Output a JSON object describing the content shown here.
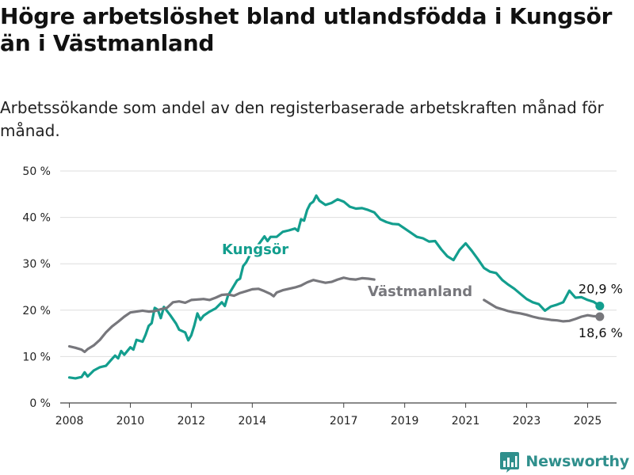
{
  "header": {
    "title": "Högre arbetslöshet bland utlandsfödda i Kungsör än i Västmanland",
    "subtitle": "Arbetssökande som andel av den registerbaserade arbetskraften månad för månad."
  },
  "brand": {
    "name": "Newsworthy",
    "color": "#2f8f8c"
  },
  "chart_data": {
    "type": "line",
    "title": "Högre arbetslöshet bland utlandsfödda i Kungsör än i Västmanland",
    "subtitle": "Arbetssökande som andel av den registerbaserade arbetskraften månad för månad.",
    "xlabel": "",
    "ylabel": "",
    "xlim": [
      2007.7,
      2025.95
    ],
    "ylim": [
      0,
      50
    ],
    "x_ticks": [
      2008,
      2010,
      2012,
      2014,
      2017,
      2019,
      2021,
      2023,
      2025
    ],
    "x_tick_labels": [
      "2008",
      "2010",
      "2012",
      "2014",
      "2017",
      "2019",
      "2021",
      "2023",
      "2025"
    ],
    "y_ticks": [
      0,
      10,
      20,
      30,
      40,
      50
    ],
    "y_tick_labels": [
      "0 %",
      "10 %",
      "20 %",
      "30 %",
      "40 %",
      "50 %"
    ],
    "grid": true,
    "legend": "inline labels",
    "series": [
      {
        "name": "Kungsör",
        "color": "#139e8e",
        "end_label": "20,9 %",
        "points": [
          [
            2008.0,
            5.5
          ],
          [
            2008.2,
            5.3
          ],
          [
            2008.4,
            5.6
          ],
          [
            2008.5,
            6.6
          ],
          [
            2008.6,
            5.7
          ],
          [
            2008.8,
            7.0
          ],
          [
            2009.0,
            7.7
          ],
          [
            2009.2,
            8.0
          ],
          [
            2009.4,
            9.5
          ],
          [
            2009.5,
            10.2
          ],
          [
            2009.6,
            9.6
          ],
          [
            2009.7,
            11.2
          ],
          [
            2009.8,
            10.4
          ],
          [
            2010.0,
            12.0
          ],
          [
            2010.1,
            11.5
          ],
          [
            2010.2,
            13.6
          ],
          [
            2010.4,
            13.2
          ],
          [
            2010.5,
            14.7
          ],
          [
            2010.6,
            16.6
          ],
          [
            2010.7,
            17.2
          ],
          [
            2010.8,
            20.5
          ],
          [
            2010.9,
            20.1
          ],
          [
            2011.0,
            18.3
          ],
          [
            2011.1,
            20.7
          ],
          [
            2011.3,
            19.0
          ],
          [
            2011.5,
            17.1
          ],
          [
            2011.6,
            15.8
          ],
          [
            2011.8,
            15.2
          ],
          [
            2011.9,
            13.5
          ],
          [
            2012.0,
            14.6
          ],
          [
            2012.1,
            16.7
          ],
          [
            2012.2,
            19.3
          ],
          [
            2012.3,
            17.9
          ],
          [
            2012.4,
            18.8
          ],
          [
            2012.6,
            19.7
          ],
          [
            2012.8,
            20.4
          ],
          [
            2013.0,
            21.7
          ],
          [
            2013.1,
            20.9
          ],
          [
            2013.2,
            23.1
          ],
          [
            2013.4,
            25.3
          ],
          [
            2013.5,
            26.4
          ],
          [
            2013.6,
            26.8
          ],
          [
            2013.7,
            29.5
          ],
          [
            2013.8,
            30.3
          ],
          [
            2013.9,
            31.6
          ],
          [
            2014.0,
            33.0
          ],
          [
            2014.1,
            33.5
          ],
          [
            2014.2,
            34.1
          ],
          [
            2014.4,
            35.9
          ],
          [
            2014.5,
            34.9
          ],
          [
            2014.6,
            35.8
          ],
          [
            2014.8,
            35.8
          ],
          [
            2015.0,
            36.9
          ],
          [
            2015.2,
            37.2
          ],
          [
            2015.4,
            37.6
          ],
          [
            2015.5,
            37.1
          ],
          [
            2015.6,
            39.6
          ],
          [
            2015.7,
            39.3
          ],
          [
            2015.8,
            41.6
          ],
          [
            2015.9,
            42.9
          ],
          [
            2016.0,
            43.4
          ],
          [
            2016.1,
            44.7
          ],
          [
            2016.2,
            43.6
          ],
          [
            2016.4,
            42.7
          ],
          [
            2016.6,
            43.1
          ],
          [
            2016.8,
            43.9
          ],
          [
            2017.0,
            43.4
          ],
          [
            2017.2,
            42.3
          ],
          [
            2017.4,
            41.9
          ],
          [
            2017.6,
            42.0
          ],
          [
            2017.8,
            41.6
          ],
          [
            2018.0,
            41.1
          ],
          [
            2018.2,
            39.6
          ],
          [
            2018.4,
            39.0
          ],
          [
            2018.6,
            38.6
          ],
          [
            2018.8,
            38.5
          ],
          [
            2019.0,
            37.6
          ],
          [
            2019.2,
            36.7
          ],
          [
            2019.4,
            35.8
          ],
          [
            2019.6,
            35.5
          ],
          [
            2019.8,
            34.8
          ],
          [
            2020.0,
            34.9
          ],
          [
            2020.2,
            33.1
          ],
          [
            2020.4,
            31.6
          ],
          [
            2020.6,
            30.8
          ],
          [
            2020.8,
            33.0
          ],
          [
            2021.0,
            34.4
          ],
          [
            2021.2,
            32.8
          ],
          [
            2021.4,
            31.0
          ],
          [
            2021.6,
            29.1
          ],
          [
            2021.8,
            28.3
          ],
          [
            2022.0,
            28.0
          ],
          [
            2022.2,
            26.5
          ],
          [
            2022.4,
            25.5
          ],
          [
            2022.6,
            24.6
          ],
          [
            2022.8,
            23.5
          ],
          [
            2023.0,
            22.4
          ],
          [
            2023.2,
            21.7
          ],
          [
            2023.4,
            21.3
          ],
          [
            2023.6,
            19.9
          ],
          [
            2023.8,
            20.8
          ],
          [
            2024.0,
            21.2
          ],
          [
            2024.2,
            21.7
          ],
          [
            2024.4,
            24.2
          ],
          [
            2024.6,
            22.7
          ],
          [
            2024.8,
            22.8
          ],
          [
            2025.0,
            22.2
          ],
          [
            2025.2,
            21.8
          ],
          [
            2025.4,
            20.9
          ]
        ]
      },
      {
        "name": "Västmanland",
        "color": "#77777c",
        "end_label": "18,6 %",
        "points": [
          [
            2008.0,
            12.2
          ],
          [
            2008.2,
            11.9
          ],
          [
            2008.4,
            11.5
          ],
          [
            2008.5,
            11.0
          ],
          [
            2008.6,
            11.6
          ],
          [
            2008.8,
            12.4
          ],
          [
            2009.0,
            13.6
          ],
          [
            2009.2,
            15.2
          ],
          [
            2009.4,
            16.5
          ],
          [
            2009.6,
            17.5
          ],
          [
            2009.8,
            18.6
          ],
          [
            2010.0,
            19.5
          ],
          [
            2010.2,
            19.7
          ],
          [
            2010.4,
            19.9
          ],
          [
            2010.6,
            19.7
          ],
          [
            2010.8,
            19.8
          ],
          [
            2011.0,
            20.2
          ],
          [
            2011.2,
            20.5
          ],
          [
            2011.4,
            21.7
          ],
          [
            2011.6,
            21.9
          ],
          [
            2011.8,
            21.6
          ],
          [
            2012.0,
            22.2
          ],
          [
            2012.2,
            22.3
          ],
          [
            2012.4,
            22.4
          ],
          [
            2012.6,
            22.2
          ],
          [
            2012.8,
            22.7
          ],
          [
            2013.0,
            23.3
          ],
          [
            2013.2,
            23.4
          ],
          [
            2013.4,
            23.1
          ],
          [
            2013.6,
            23.7
          ],
          [
            2013.8,
            24.1
          ],
          [
            2014.0,
            24.5
          ],
          [
            2014.2,
            24.6
          ],
          [
            2014.4,
            24.1
          ],
          [
            2014.6,
            23.5
          ],
          [
            2014.7,
            23.0
          ],
          [
            2014.8,
            23.8
          ],
          [
            2015.0,
            24.3
          ],
          [
            2015.2,
            24.6
          ],
          [
            2015.4,
            24.9
          ],
          [
            2015.6,
            25.3
          ],
          [
            2015.8,
            26.0
          ],
          [
            2016.0,
            26.5
          ],
          [
            2016.2,
            26.2
          ],
          [
            2016.4,
            25.9
          ],
          [
            2016.6,
            26.1
          ],
          [
            2016.8,
            26.6
          ],
          [
            2017.0,
            27.0
          ],
          [
            2017.2,
            26.7
          ],
          [
            2017.4,
            26.6
          ],
          [
            2017.6,
            26.9
          ],
          [
            2017.8,
            26.8
          ],
          [
            2018.0,
            26.6
          ],
          [
            2021.6,
            22.2
          ],
          [
            2021.8,
            21.4
          ],
          [
            2022.0,
            20.6
          ],
          [
            2022.2,
            20.2
          ],
          [
            2022.4,
            19.8
          ],
          [
            2022.6,
            19.5
          ],
          [
            2022.8,
            19.3
          ],
          [
            2023.0,
            19.0
          ],
          [
            2023.2,
            18.6
          ],
          [
            2023.4,
            18.3
          ],
          [
            2023.6,
            18.1
          ],
          [
            2023.8,
            17.9
          ],
          [
            2024.0,
            17.8
          ],
          [
            2024.2,
            17.6
          ],
          [
            2024.4,
            17.7
          ],
          [
            2024.6,
            18.1
          ],
          [
            2024.8,
            18.6
          ],
          [
            2025.0,
            18.9
          ],
          [
            2025.2,
            18.7
          ],
          [
            2025.4,
            18.6
          ]
        ]
      }
    ]
  }
}
